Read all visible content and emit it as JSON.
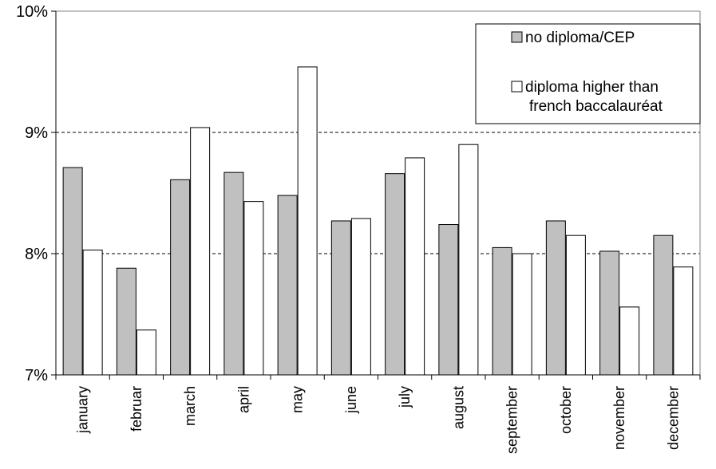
{
  "chart_data": {
    "type": "bar",
    "categories": [
      "january",
      "februar",
      "march",
      "april",
      "may",
      "june",
      "july",
      "august",
      "september",
      "october",
      "november",
      "december"
    ],
    "series": [
      {
        "name": "no diploma/CEP",
        "color": "#c0c0c0",
        "values": [
          8.71,
          7.88,
          8.61,
          8.67,
          8.48,
          8.27,
          8.66,
          8.24,
          8.05,
          8.27,
          8.02,
          8.15
        ]
      },
      {
        "name": "diploma higher than french baccalauréat",
        "color": "#ffffff",
        "values": [
          8.03,
          7.37,
          9.04,
          8.43,
          9.54,
          8.29,
          8.79,
          8.9,
          8.0,
          8.15,
          7.56,
          7.89
        ]
      }
    ],
    "yticks": [
      "7%",
      "8%",
      "9%",
      "10%"
    ],
    "ylim": [
      7,
      10
    ],
    "grid": "dashed horizontal",
    "legend_position": "top-right"
  }
}
